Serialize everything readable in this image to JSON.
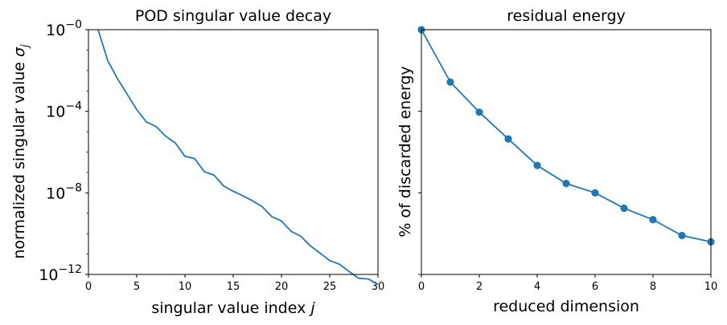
{
  "chart_data": [
    {
      "type": "line",
      "title": "POD singular value decay",
      "xlabel": "singular value index",
      "xlabel_var": "j",
      "ylabel": "normalized singular value",
      "ylabel_var": "σ",
      "ylabel_sub": "j",
      "y_scale": "log",
      "xlim": [
        0,
        30
      ],
      "ylim": [
        1e-12,
        1
      ],
      "x_ticks": [
        0,
        5,
        10,
        15,
        20,
        25,
        30
      ],
      "y_ticks": [
        {
          "base": "10",
          "exp": "−0",
          "value": 1
        },
        {
          "base": "10",
          "exp": "−4",
          "value": 0.0001
        },
        {
          "base": "10",
          "exp": "−8",
          "value": 1e-08
        },
        {
          "base": "10",
          "exp": "−12",
          "value": 1e-12
        }
      ],
      "color": "#1f77b4",
      "markers": false,
      "x": [
        1,
        2,
        3,
        4,
        5,
        6,
        7,
        8,
        9,
        10,
        11,
        12,
        13,
        14,
        15,
        16,
        17,
        18,
        19,
        20,
        21,
        22,
        23,
        24,
        25,
        26,
        27,
        28,
        29,
        30
      ],
      "y": [
        1.0,
        0.03,
        0.004,
        0.0007,
        0.00012,
        3e-05,
        1.8e-05,
        6e-06,
        2.8e-06,
        6.2e-07,
        4.8e-07,
        1.1e-07,
        7.5e-08,
        2.2e-08,
        1.2e-08,
        7.2e-09,
        4.1e-09,
        2.1e-09,
        6.8e-10,
        4.2e-10,
        1.3e-10,
        7.5e-11,
        2.5e-11,
        1.1e-11,
        4.8e-12,
        3.2e-12,
        1.4e-12,
        6.5e-13,
        6e-13,
        3.2e-13
      ]
    },
    {
      "type": "line",
      "title": "residual energy",
      "xlabel": "reduced dimension",
      "ylabel": "% of discarded energy",
      "y_scale": "log",
      "y_tick_labels_shown": false,
      "xlim": [
        0,
        10
      ],
      "x_ticks": [
        0,
        2,
        4,
        6,
        8,
        10
      ],
      "color": "#1f77b4",
      "markers": true,
      "x": [
        0,
        1,
        2,
        3,
        4,
        5,
        6,
        7,
        8,
        9,
        10
      ],
      "y": [
        100,
        5.2,
        0.95,
        0.21,
        0.047,
        0.017,
        0.01,
        0.0042,
        0.0022,
        0.0009,
        0.00063
      ]
    }
  ]
}
